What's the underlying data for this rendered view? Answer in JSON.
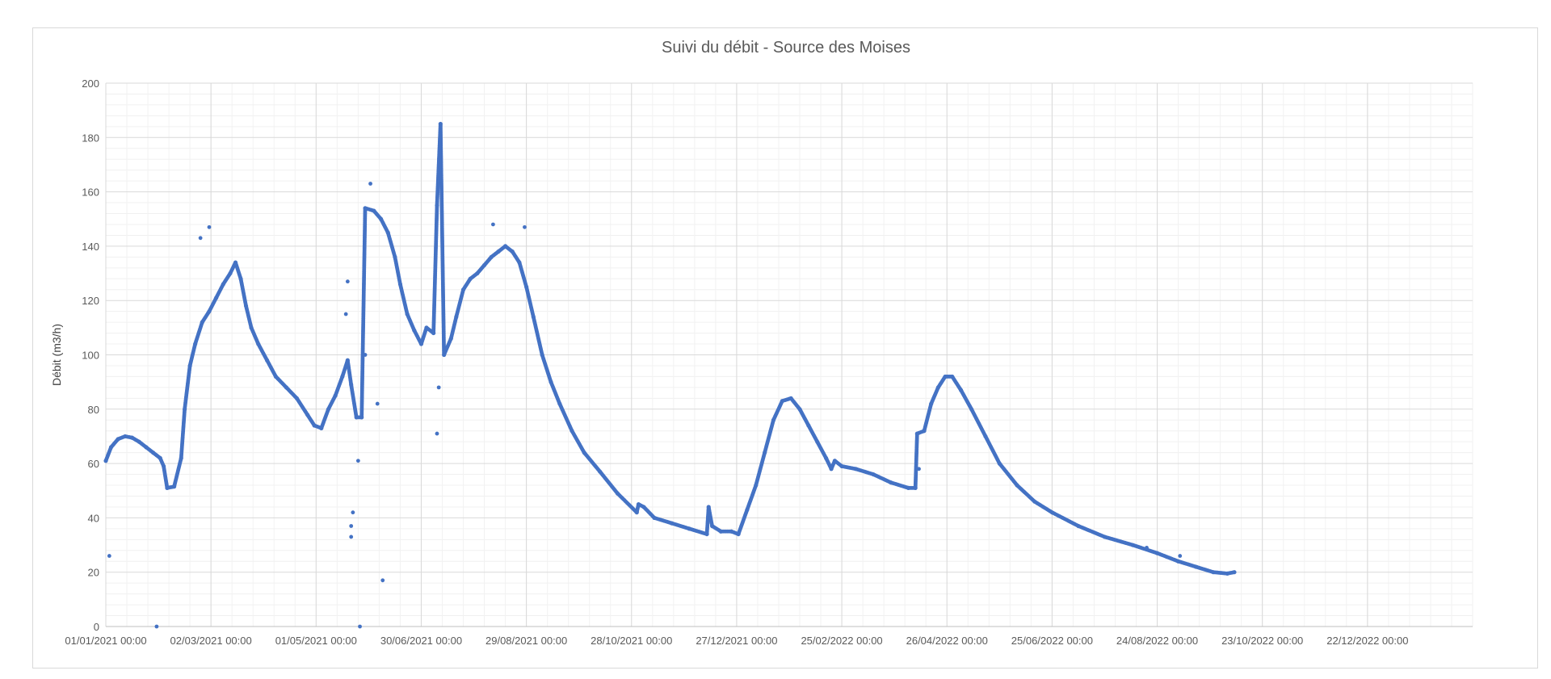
{
  "chart_data": {
    "type": "scatter",
    "title": "Suivi du débit - Source des Moises",
    "xlabel": "",
    "ylabel": "Débit (m3/h)",
    "x_axis": {
      "type": "date",
      "range": [
        "2021-01-01",
        "2023-02-20"
      ],
      "tick_dates": [
        "2021-01-01",
        "2021-03-02",
        "2021-05-01",
        "2021-06-30",
        "2021-08-29",
        "2021-10-28",
        "2021-12-27",
        "2022-02-25",
        "2022-04-26",
        "2022-06-25",
        "2022-08-24",
        "2022-10-23",
        "2022-12-22"
      ],
      "tick_labels": [
        "01/01/2021 00:00",
        "02/03/2021 00:00",
        "01/05/2021 00:00",
        "30/06/2021 00:00",
        "29/08/2021 00:00",
        "28/10/2021 00:00",
        "27/12/2021 00:00",
        "25/02/2022 00:00",
        "26/04/2022 00:00",
        "25/06/2022 00:00",
        "24/08/2022 00:00",
        "23/10/2022 00:00",
        "22/12/2022 00:00"
      ]
    },
    "y_axis": {
      "range": [
        0,
        200
      ],
      "ticks": [
        0,
        20,
        40,
        60,
        80,
        100,
        120,
        140,
        160,
        180,
        200
      ],
      "tick_labels": [
        "0",
        "20",
        "40",
        "60",
        "80",
        "100",
        "120",
        "140",
        "160",
        "180",
        "200"
      ]
    },
    "grid": {
      "major": true,
      "minor": true
    },
    "legend": "none",
    "series": [
      {
        "color": "#4472C4",
        "points": [
          [
            "2021-01-01",
            61
          ],
          [
            "2021-01-04",
            66
          ],
          [
            "2021-01-08",
            69
          ],
          [
            "2021-01-12",
            70
          ],
          [
            "2021-01-16",
            69.5
          ],
          [
            "2021-01-20",
            68
          ],
          [
            "2021-01-24",
            66
          ],
          [
            "2021-01-28",
            64
          ],
          [
            "2021-02-01",
            62
          ],
          [
            "2021-02-03",
            59
          ],
          [
            "2021-02-05",
            51
          ],
          [
            "2021-02-09",
            51.5
          ],
          [
            "2021-02-13",
            62
          ],
          [
            "2021-02-15",
            80
          ],
          [
            "2021-02-18",
            96
          ],
          [
            "2021-02-21",
            104
          ],
          [
            "2021-02-25",
            112
          ],
          [
            "2021-03-01",
            116
          ],
          [
            "2021-03-05",
            121
          ],
          [
            "2021-03-09",
            126
          ],
          [
            "2021-03-13",
            130
          ],
          [
            "2021-03-16",
            134
          ],
          [
            "2021-03-19",
            128
          ],
          [
            "2021-03-22",
            118
          ],
          [
            "2021-03-25",
            110
          ],
          [
            "2021-03-29",
            104
          ],
          [
            "2021-04-03",
            98
          ],
          [
            "2021-04-08",
            92
          ],
          [
            "2021-04-14",
            88
          ],
          [
            "2021-04-20",
            84
          ],
          [
            "2021-04-26",
            78
          ],
          [
            "2021-04-30",
            74
          ],
          [
            "2021-05-04",
            73
          ],
          [
            "2021-05-08",
            80
          ],
          [
            "2021-05-12",
            85
          ],
          [
            "2021-05-16",
            92
          ],
          [
            "2021-05-19",
            98
          ],
          [
            "2021-05-21",
            89
          ],
          [
            "2021-05-24",
            77
          ],
          [
            "2021-05-27",
            77
          ],
          [
            "2021-05-29",
            154
          ],
          [
            "2021-06-03",
            153
          ],
          [
            "2021-06-07",
            150
          ],
          [
            "2021-06-11",
            145
          ],
          [
            "2021-06-15",
            136
          ],
          [
            "2021-06-18",
            126
          ],
          [
            "2021-06-22",
            115
          ],
          [
            "2021-06-26",
            109
          ],
          [
            "2021-06-30",
            104
          ],
          [
            "2021-07-03",
            110
          ],
          [
            "2021-07-07",
            108
          ],
          [
            "2021-07-09",
            155
          ],
          [
            "2021-07-11",
            185
          ],
          [
            "2021-07-13",
            100
          ],
          [
            "2021-07-17",
            106
          ],
          [
            "2021-07-20",
            114
          ],
          [
            "2021-07-24",
            124
          ],
          [
            "2021-07-28",
            128
          ],
          [
            "2021-08-01",
            130
          ],
          [
            "2021-08-05",
            133
          ],
          [
            "2021-08-09",
            136
          ],
          [
            "2021-08-13",
            138
          ],
          [
            "2021-08-17",
            140
          ],
          [
            "2021-08-21",
            138
          ],
          [
            "2021-08-25",
            134
          ],
          [
            "2021-08-29",
            125
          ],
          [
            "2021-09-02",
            114
          ],
          [
            "2021-09-07",
            100
          ],
          [
            "2021-09-12",
            90
          ],
          [
            "2021-09-17",
            82
          ],
          [
            "2021-09-24",
            72
          ],
          [
            "2021-10-01",
            64
          ],
          [
            "2021-10-10",
            57
          ],
          [
            "2021-10-20",
            49
          ],
          [
            "2021-10-31",
            42
          ],
          [
            "2021-11-01",
            45
          ],
          [
            "2021-11-04",
            44
          ],
          [
            "2021-11-10",
            40
          ],
          [
            "2021-11-20",
            38
          ],
          [
            "2021-11-30",
            36
          ],
          [
            "2021-12-10",
            34
          ],
          [
            "2021-12-11",
            44
          ],
          [
            "2021-12-13",
            37
          ],
          [
            "2021-12-18",
            35
          ],
          [
            "2021-12-24",
            35
          ],
          [
            "2021-12-28",
            34
          ],
          [
            "2022-01-02",
            43
          ],
          [
            "2022-01-07",
            52
          ],
          [
            "2022-01-12",
            64
          ],
          [
            "2022-01-17",
            76
          ],
          [
            "2022-01-22",
            83
          ],
          [
            "2022-01-27",
            84
          ],
          [
            "2022-02-01",
            80
          ],
          [
            "2022-02-06",
            74
          ],
          [
            "2022-02-11",
            68
          ],
          [
            "2022-02-16",
            62
          ],
          [
            "2022-02-19",
            58
          ],
          [
            "2022-02-21",
            61
          ],
          [
            "2022-02-25",
            59
          ],
          [
            "2022-03-05",
            58
          ],
          [
            "2022-03-15",
            56
          ],
          [
            "2022-03-25",
            53
          ],
          [
            "2022-04-04",
            51
          ],
          [
            "2022-04-08",
            51
          ],
          [
            "2022-04-09",
            71
          ],
          [
            "2022-04-13",
            72
          ],
          [
            "2022-04-17",
            82
          ],
          [
            "2022-04-21",
            88
          ],
          [
            "2022-04-25",
            92
          ],
          [
            "2022-04-29",
            92
          ],
          [
            "2022-05-04",
            87
          ],
          [
            "2022-05-10",
            80
          ],
          [
            "2022-05-18",
            70
          ],
          [
            "2022-05-26",
            60
          ],
          [
            "2022-06-05",
            52
          ],
          [
            "2022-06-15",
            46
          ],
          [
            "2022-06-25",
            42
          ],
          [
            "2022-07-10",
            37
          ],
          [
            "2022-07-25",
            33
          ],
          [
            "2022-08-10",
            30
          ],
          [
            "2022-08-24",
            27
          ],
          [
            "2022-09-05",
            24
          ],
          [
            "2022-09-15",
            22
          ],
          [
            "2022-09-25",
            20
          ],
          [
            "2022-10-03",
            19.5
          ],
          [
            "2022-10-07",
            20
          ]
        ]
      }
    ],
    "outliers": [
      [
        "2021-01-03",
        26
      ],
      [
        "2021-01-30",
        0
      ],
      [
        "2021-05-21",
        33
      ],
      [
        "2021-05-21",
        37
      ],
      [
        "2021-05-22",
        42
      ],
      [
        "2021-05-26",
        0
      ],
      [
        "2021-05-25",
        61
      ],
      [
        "2021-06-05",
        82
      ],
      [
        "2021-06-08",
        17
      ],
      [
        "2021-06-01",
        163
      ],
      [
        "2021-07-09",
        71
      ],
      [
        "2021-07-10",
        88
      ],
      [
        "2021-03-01",
        147
      ],
      [
        "2021-02-24",
        143
      ],
      [
        "2021-08-10",
        148
      ],
      [
        "2021-08-28",
        147
      ],
      [
        "2021-05-19",
        127
      ],
      [
        "2021-05-18",
        115
      ],
      [
        "2021-05-29",
        100
      ],
      [
        "2022-04-10",
        58
      ],
      [
        "2022-09-06",
        26
      ],
      [
        "2022-08-18",
        29
      ]
    ]
  }
}
